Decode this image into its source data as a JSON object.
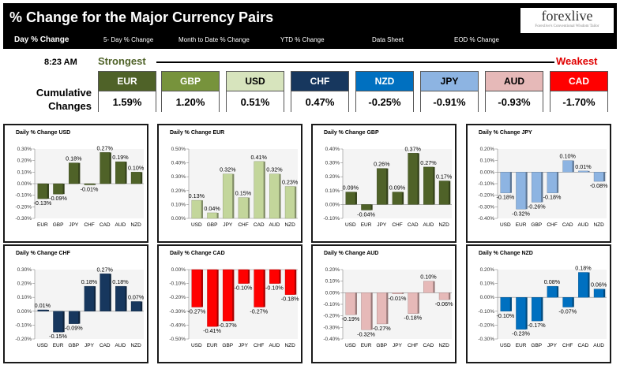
{
  "header": {
    "title": "% Change for the Major Currency Pairs",
    "logo_main": "forexlive",
    "logo_sub": "Forexlive's Conventional Wisdom Tailor"
  },
  "tabs": [
    {
      "label": "Day % Change",
      "active": true
    },
    {
      "label": "5- Day % Change",
      "active": false
    },
    {
      "label": "Month to Date % Change",
      "active": false
    },
    {
      "label": "YTD % Change",
      "active": false
    },
    {
      "label": "Data Sheet",
      "active": false
    },
    {
      "label": "EOD % Change",
      "active": false
    }
  ],
  "summary": {
    "time": "8:23 AM",
    "strongest_label": "Strongest",
    "weakest_label": "Weakest",
    "cumulative_label": "Cumulative Changes",
    "currencies": [
      {
        "name": "EUR",
        "value": "1.59%",
        "color": "#4f6228",
        "text_color": "#ffffff"
      },
      {
        "name": "GBP",
        "value": "1.20%",
        "color": "#77933c",
        "text_color": "#ffffff"
      },
      {
        "name": "USD",
        "value": "0.51%",
        "color": "#d7e4bd",
        "text_color": "#000000"
      },
      {
        "name": "CHF",
        "value": "0.47%",
        "color": "#17375e",
        "text_color": "#ffffff"
      },
      {
        "name": "NZD",
        "value": "-0.25%",
        "color": "#0070c0",
        "text_color": "#ffffff"
      },
      {
        "name": "JPY",
        "value": "-0.91%",
        "color": "#8db4e2",
        "text_color": "#000000"
      },
      {
        "name": "AUD",
        "value": "-0.93%",
        "color": "#e6b9b8",
        "text_color": "#000000"
      },
      {
        "name": "CAD",
        "value": "-1.70%",
        "color": "#ff0000",
        "text_color": "#ffffff"
      }
    ]
  },
  "chart_data": [
    {
      "type": "bar",
      "title": "Daily % Change USD",
      "color": "#4f6228",
      "categories": [
        "EUR",
        "GBP",
        "JPY",
        "CHF",
        "CAD",
        "AUD",
        "NZD"
      ],
      "values": [
        -0.13,
        -0.09,
        0.18,
        -0.01,
        0.27,
        0.19,
        0.1
      ],
      "labels": [
        "-0.13%",
        "-0.09%",
        "0.18%",
        "-0.01%",
        "0.27%",
        "0.19%",
        "0.10%"
      ],
      "ylim": [
        -0.3,
        0.3
      ],
      "ticks": [
        -0.3,
        -0.2,
        -0.1,
        0,
        0.1,
        0.2,
        0.3
      ],
      "tick_labels": [
        "-0.30%",
        "-0.20%",
        "-0.10%",
        "0.00%",
        "0.10%",
        "0.20%",
        "0.30%"
      ]
    },
    {
      "type": "bar",
      "title": "Daily % Change EUR",
      "color": "#c3d69b",
      "categories": [
        "USD",
        "GBP",
        "JPY",
        "CHF",
        "CAD",
        "AUD",
        "NZD"
      ],
      "values": [
        0.13,
        0.04,
        0.32,
        0.15,
        0.41,
        0.32,
        0.23
      ],
      "labels": [
        "0.13%",
        "0.04%",
        "0.32%",
        "0.15%",
        "0.41%",
        "0.32%",
        "0.23%"
      ],
      "ylim": [
        0,
        0.5
      ],
      "ticks": [
        0,
        0.1,
        0.2,
        0.3,
        0.4,
        0.5
      ],
      "tick_labels": [
        "0.00%",
        "0.10%",
        "0.20%",
        "0.30%",
        "0.40%",
        "0.50%"
      ]
    },
    {
      "type": "bar",
      "title": "Daily % Change GBP",
      "color": "#4f6228",
      "categories": [
        "USD",
        "EUR",
        "JPY",
        "CHF",
        "CAD",
        "AUD",
        "NZD"
      ],
      "values": [
        0.09,
        -0.04,
        0.26,
        0.09,
        0.37,
        0.27,
        0.17
      ],
      "labels": [
        "0.09%",
        "-0.04%",
        "0.26%",
        "0.09%",
        "0.37%",
        "0.27%",
        "0.17%"
      ],
      "ylim": [
        -0.1,
        0.4
      ],
      "ticks": [
        -0.1,
        0,
        0.1,
        0.2,
        0.3,
        0.4
      ],
      "tick_labels": [
        "-0.10%",
        "0.00%",
        "0.10%",
        "0.20%",
        "0.30%",
        "0.40%"
      ]
    },
    {
      "type": "bar",
      "title": "Daily % Change JPY",
      "color": "#8db4e2",
      "categories": [
        "USD",
        "EUR",
        "GBP",
        "CHF",
        "CAD",
        "AUD",
        "NZD"
      ],
      "values": [
        -0.18,
        -0.32,
        -0.26,
        -0.18,
        0.1,
        0.01,
        -0.08
      ],
      "labels": [
        "-0.18%",
        "-0.32%",
        "-0.26%",
        "-0.18%",
        "0.10%",
        "0.01%",
        "-0.08%"
      ],
      "ylim": [
        -0.4,
        0.2
      ],
      "ticks": [
        -0.4,
        -0.3,
        -0.2,
        -0.1,
        0,
        0.1,
        0.2
      ],
      "tick_labels": [
        "-0.40%",
        "-0.30%",
        "-0.20%",
        "-0.10%",
        "0.00%",
        "0.10%",
        "0.20%"
      ]
    },
    {
      "type": "bar",
      "title": "Daily % Change CHF",
      "color": "#17375e",
      "categories": [
        "USD",
        "EUR",
        "GBP",
        "JPY",
        "CAD",
        "AUD",
        "NZD"
      ],
      "values": [
        0.01,
        -0.15,
        -0.09,
        0.18,
        0.27,
        0.18,
        0.07
      ],
      "labels": [
        "0.01%",
        "-0.15%",
        "-0.09%",
        "0.18%",
        "0.27%",
        "0.18%",
        "0.07%"
      ],
      "ylim": [
        -0.2,
        0.3
      ],
      "ticks": [
        -0.2,
        -0.1,
        0,
        0.1,
        0.2,
        0.3
      ],
      "tick_labels": [
        "-0.20%",
        "-0.10%",
        "0.00%",
        "0.10%",
        "0.20%",
        "0.30%"
      ]
    },
    {
      "type": "bar",
      "title": "Daily % Change CAD",
      "color": "#ff0000",
      "categories": [
        "USD",
        "EUR",
        "GBP",
        "JPY",
        "CHF",
        "AUD",
        "NZD"
      ],
      "values": [
        -0.27,
        -0.41,
        -0.37,
        -0.1,
        -0.27,
        -0.1,
        -0.18
      ],
      "labels": [
        "-0.27%",
        "-0.41%",
        "-0.37%",
        "-0.10%",
        "-0.27%",
        "-0.10%",
        "-0.18%"
      ],
      "ylim": [
        -0.5,
        0
      ],
      "ticks": [
        -0.5,
        -0.4,
        -0.3,
        -0.2,
        -0.1,
        0
      ],
      "tick_labels": [
        "-0.50%",
        "-0.40%",
        "-0.30%",
        "-0.20%",
        "-0.10%",
        "0.00%"
      ]
    },
    {
      "type": "bar",
      "title": "Daily % Change AUD",
      "color": "#e6b9b8",
      "categories": [
        "USD",
        "EUR",
        "GBP",
        "JPY",
        "CHF",
        "CAD",
        "NZD"
      ],
      "values": [
        -0.19,
        -0.32,
        -0.27,
        -0.01,
        -0.18,
        0.1,
        -0.06
      ],
      "labels": [
        "-0.19%",
        "-0.32%",
        "-0.27%",
        "-0.01%",
        "-0.18%",
        "0.10%",
        "-0.06%"
      ],
      "ylim": [
        -0.4,
        0.2
      ],
      "ticks": [
        -0.4,
        -0.3,
        -0.2,
        -0.1,
        0,
        0.1,
        0.2
      ],
      "tick_labels": [
        "-0.40%",
        "-0.30%",
        "-0.20%",
        "-0.10%",
        "0.00%",
        "0.10%",
        "0.20%"
      ]
    },
    {
      "type": "bar",
      "title": "Daily % Change NZD",
      "color": "#0070c0",
      "categories": [
        "USD",
        "EUR",
        "GBP",
        "JPY",
        "CHF",
        "CAD",
        "AUD"
      ],
      "values": [
        -0.1,
        -0.23,
        -0.17,
        0.08,
        -0.07,
        0.18,
        0.06
      ],
      "labels": [
        "-0.10%",
        "-0.23%",
        "-0.17%",
        "0.08%",
        "-0.07%",
        "0.18%",
        "0.06%"
      ],
      "ylim": [
        -0.3,
        0.2
      ],
      "ticks": [
        -0.3,
        -0.2,
        -0.1,
        0,
        0.1,
        0.2
      ],
      "tick_labels": [
        "-0.30%",
        "-0.20%",
        "-0.10%",
        "0.00%",
        "0.10%",
        "0.20%"
      ]
    }
  ]
}
